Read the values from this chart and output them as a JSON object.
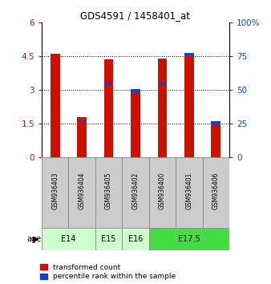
{
  "title": "GDS4591 / 1458401_at",
  "samples": [
    "GSM936403",
    "GSM936404",
    "GSM936405",
    "GSM936402",
    "GSM936400",
    "GSM936401",
    "GSM936406"
  ],
  "red_values": [
    4.62,
    1.78,
    4.37,
    3.05,
    4.39,
    4.65,
    1.62
  ],
  "blue_values": [
    null,
    1.62,
    3.28,
    2.95,
    3.28,
    4.6,
    1.5
  ],
  "age_group_spans": [
    {
      "label": "E14",
      "start": 0,
      "end": 1,
      "color": "#ccffcc"
    },
    {
      "label": "E15",
      "start": 2,
      "end": 2,
      "color": "#ccffcc"
    },
    {
      "label": "E16",
      "start": 3,
      "end": 3,
      "color": "#ccffcc"
    },
    {
      "label": "E17.5",
      "start": 4,
      "end": 6,
      "color": "#44dd44"
    }
  ],
  "left_ylim": [
    0,
    6
  ],
  "left_yticks": [
    0,
    1.5,
    3,
    4.5,
    6
  ],
  "left_ytick_labels": [
    "0",
    "1.5",
    "3",
    "4.5",
    "6"
  ],
  "right_ylim": [
    0,
    100
  ],
  "right_yticks": [
    0,
    25,
    50,
    75,
    100
  ],
  "right_ytick_labels": [
    "0",
    "25",
    "50",
    "75",
    "100%"
  ],
  "bar_width": 0.35,
  "red_color": "#cc1100",
  "blue_color": "#1144cc",
  "sample_bg_color": "#cccccc",
  "legend_red": "transformed count",
  "legend_blue": "percentile rank within the sample",
  "dotted_lines": [
    1.5,
    3.0,
    4.5
  ]
}
